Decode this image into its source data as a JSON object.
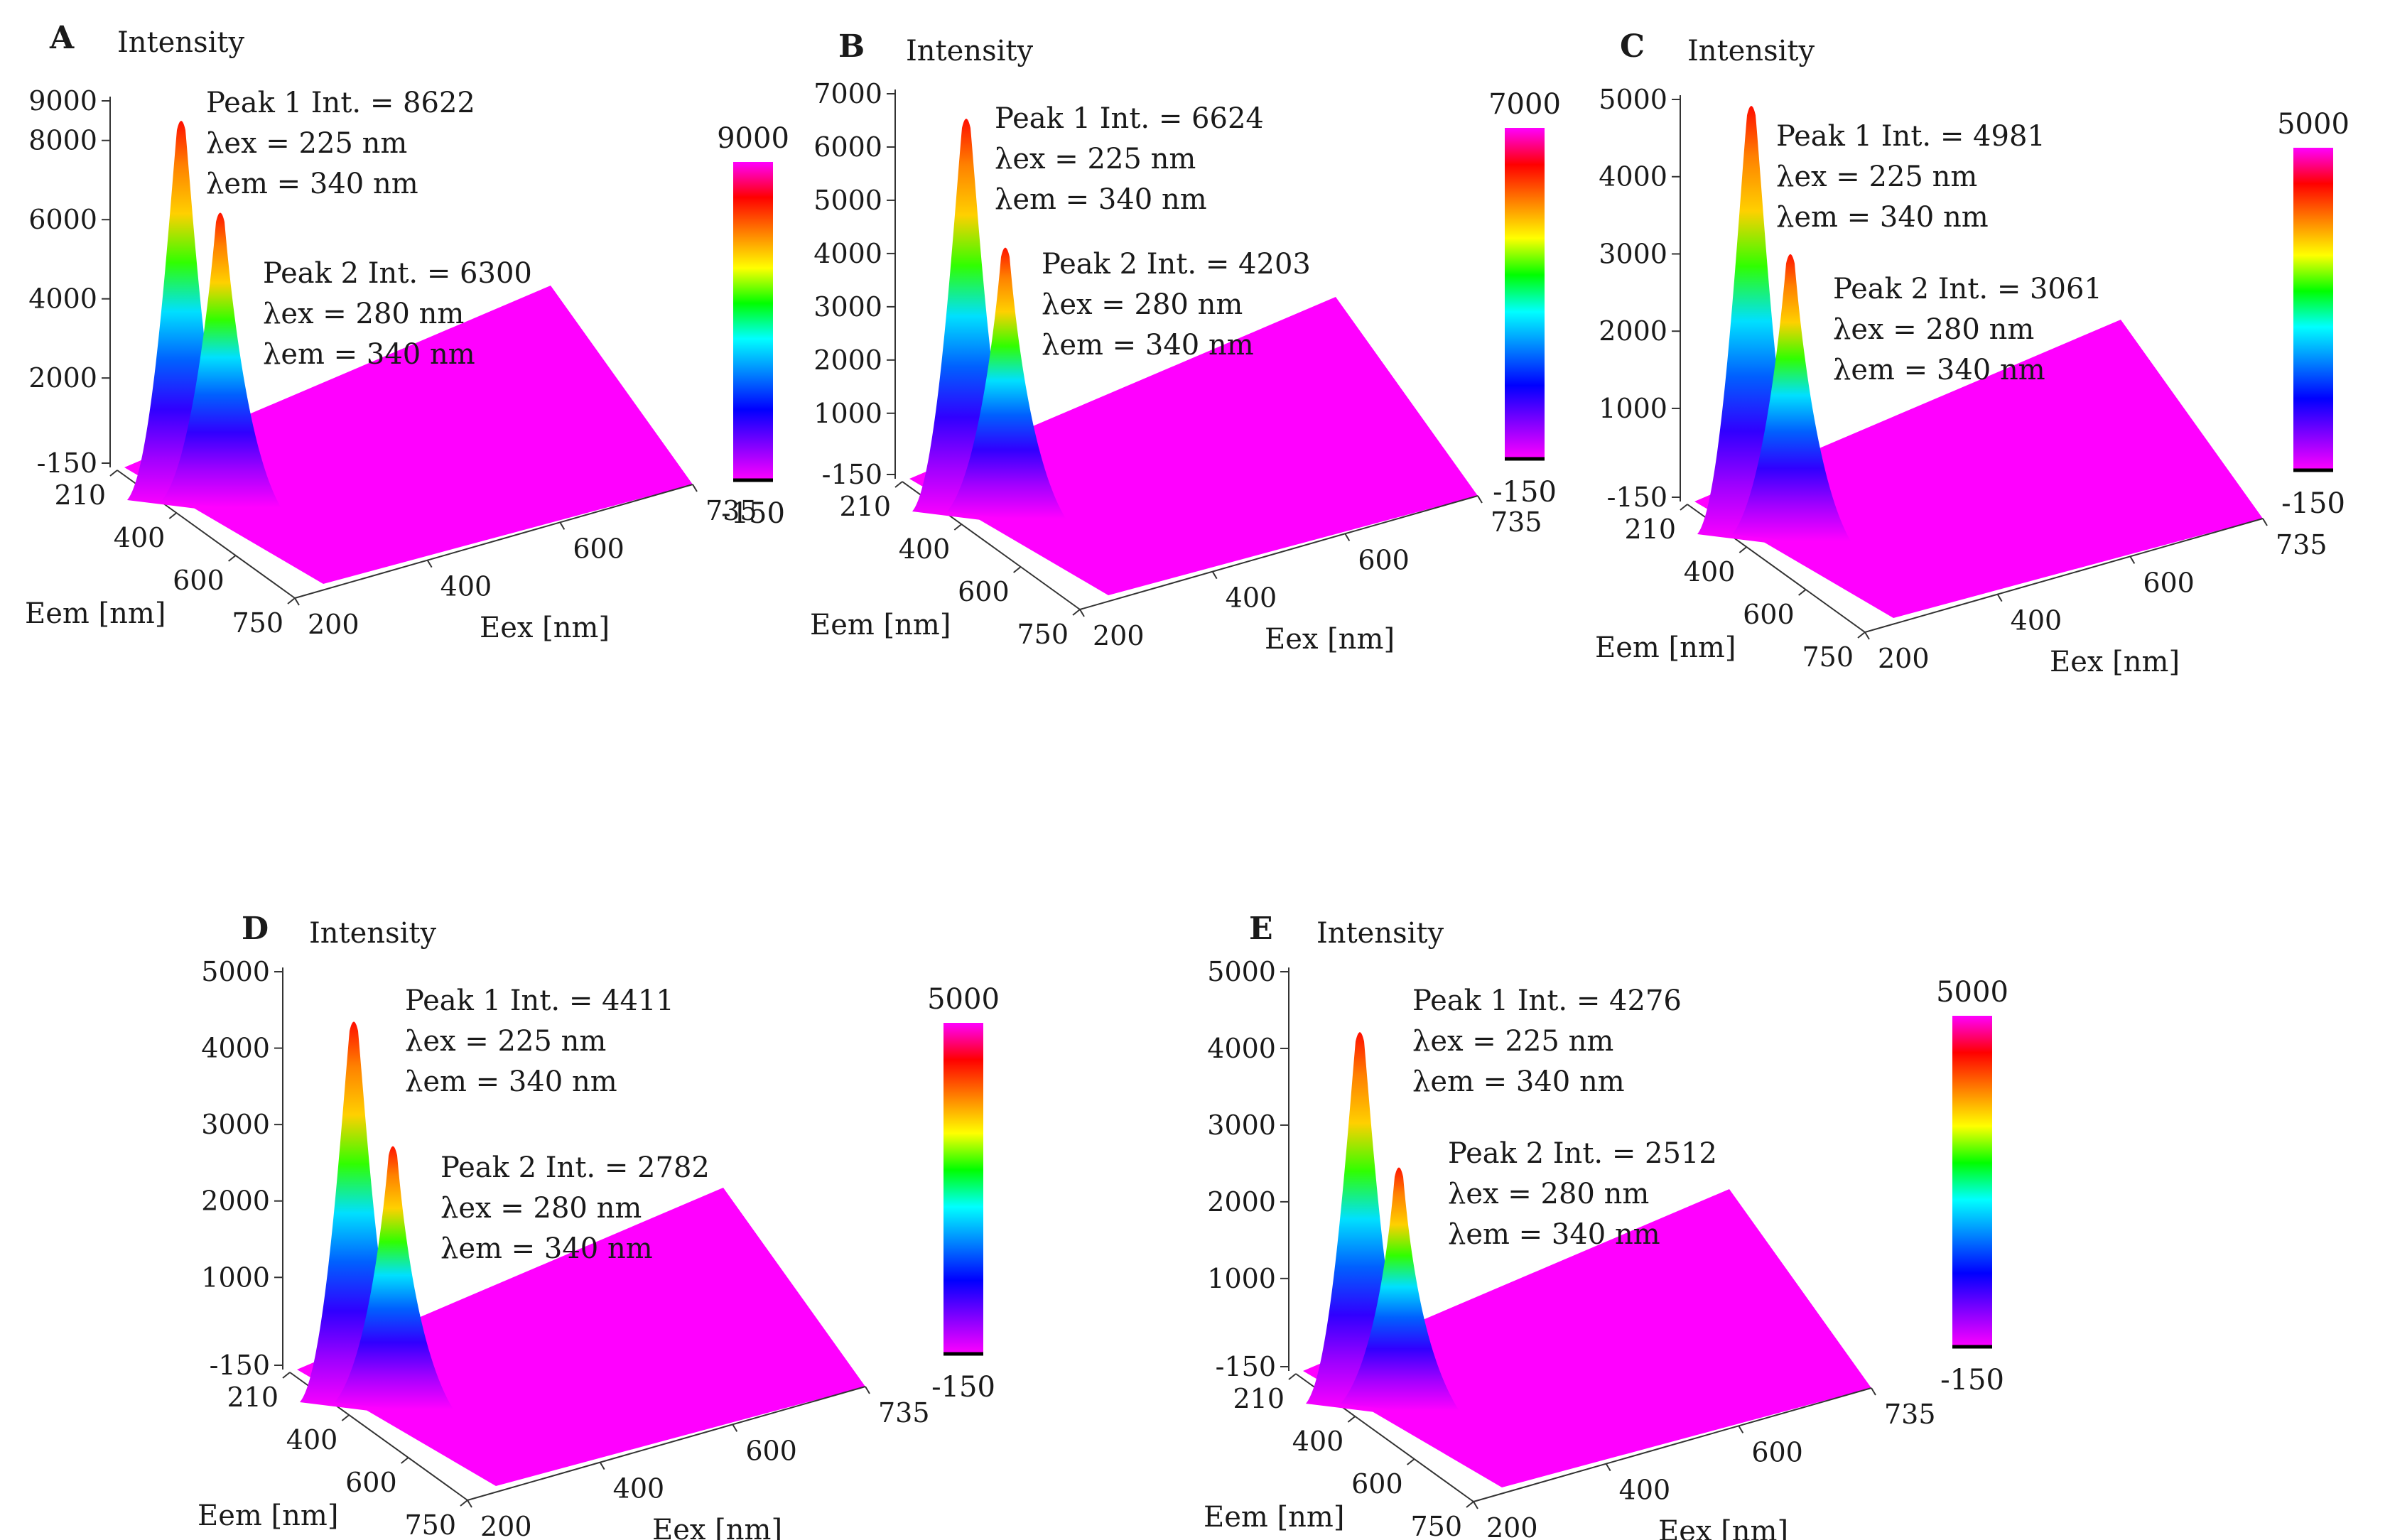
{
  "figure": {
    "colorbar_colors": [
      "#ff00ff",
      "#ff0000",
      "#ff8000",
      "#ffff00",
      "#00ff00",
      "#00ffff",
      "#0080ff",
      "#0000ff",
      "#8000ff",
      "#ff00ff"
    ],
    "floor_color": "#ff00ff"
  },
  "chart_data": [
    {
      "panel": "A",
      "type": "surface3d",
      "title": "Intensity",
      "xlabel": "Eex [nm]",
      "ylabel": "Eem [nm]",
      "zlabel": "Intensity",
      "z_ticks": [
        "9000",
        "8000",
        "6000",
        "4000",
        "2000",
        "-150"
      ],
      "z_tick_values": [
        9000,
        8000,
        6000,
        4000,
        2000,
        -150
      ],
      "zlim": [
        -150,
        9000
      ],
      "em_ticks": [
        "210",
        "400",
        "600",
        "750"
      ],
      "ex_ticks": [
        "200",
        "400",
        "600",
        "735"
      ],
      "colorbar": {
        "max": "9000",
        "min": "-150"
      },
      "peaks": [
        {
          "name": "Peak 1",
          "intensity": 8622,
          "label": "Peak 1 Int. = 8622",
          "ex_label": "λex = 225 nm",
          "em_label": "λem  = 340 nm",
          "ex": 225,
          "em": 340
        },
        {
          "name": "Peak 2",
          "intensity": 6300,
          "label": "Peak 2 Int. = 6300",
          "ex_label": "λex = 280 nm",
          "em_label": "λem  = 340 nm",
          "ex": 280,
          "em": 340
        }
      ]
    },
    {
      "panel": "B",
      "type": "surface3d",
      "title": "Intensity",
      "xlabel": "Eex [nm]",
      "ylabel": "Eem [nm]",
      "zlabel": "Intensity",
      "z_ticks": [
        "7000",
        "6000",
        "5000",
        "4000",
        "3000",
        "2000",
        "1000",
        "-150"
      ],
      "z_tick_values": [
        7000,
        6000,
        5000,
        4000,
        3000,
        2000,
        1000,
        -150
      ],
      "zlim": [
        -150,
        7000
      ],
      "em_ticks": [
        "210",
        "400",
        "600",
        "750"
      ],
      "ex_ticks": [
        "200",
        "400",
        "600",
        "735"
      ],
      "colorbar": {
        "max": "7000",
        "min": "-150"
      },
      "peaks": [
        {
          "name": "Peak 1",
          "intensity": 6624,
          "label": "Peak 1 Int. = 6624",
          "ex_label": "λex = 225 nm",
          "em_label": "λem  = 340 nm",
          "ex": 225,
          "em": 340
        },
        {
          "name": "Peak 2",
          "intensity": 4203,
          "label": "Peak 2 Int. = 4203",
          "ex_label": "λex = 280 nm",
          "em_label": "λem  = 340 nm",
          "ex": 280,
          "em": 340
        }
      ]
    },
    {
      "panel": "C",
      "type": "surface3d",
      "title": "Intensity",
      "xlabel": "Eex [nm]",
      "ylabel": "Eem [nm]",
      "zlabel": "Intensity",
      "z_ticks": [
        "5000",
        "4000",
        "3000",
        "2000",
        "1000",
        "-150"
      ],
      "z_tick_values": [
        5000,
        4000,
        3000,
        2000,
        1000,
        -150
      ],
      "zlim": [
        -150,
        5000
      ],
      "em_ticks": [
        "210",
        "400",
        "600",
        "750"
      ],
      "ex_ticks": [
        "200",
        "400",
        "600",
        "735"
      ],
      "colorbar": {
        "max": "5000",
        "min": "-150"
      },
      "peaks": [
        {
          "name": "Peak 1",
          "intensity": 4981,
          "label": "Peak 1 Int. = 4981",
          "ex_label": "λex = 225 nm",
          "em_label": "λem  = 340 nm",
          "ex": 225,
          "em": 340
        },
        {
          "name": "Peak 2",
          "intensity": 3061,
          "label": "Peak 2 Int. = 3061",
          "ex_label": "λex = 280 nm",
          "em_label": "λem  = 340 nm",
          "ex": 280,
          "em": 340
        }
      ]
    },
    {
      "panel": "D",
      "type": "surface3d",
      "title": "Intensity",
      "xlabel": "Eex [nm]",
      "ylabel": "Eem [nm]",
      "zlabel": "Intensity",
      "z_ticks": [
        "5000",
        "4000",
        "3000",
        "2000",
        "1000",
        "-150"
      ],
      "z_tick_values": [
        5000,
        4000,
        3000,
        2000,
        1000,
        -150
      ],
      "zlim": [
        -150,
        5000
      ],
      "em_ticks": [
        "210",
        "400",
        "600",
        "750"
      ],
      "ex_ticks": [
        "200",
        "400",
        "600",
        "735"
      ],
      "colorbar": {
        "max": "5000",
        "min": "-150"
      },
      "peaks": [
        {
          "name": "Peak 1",
          "intensity": 4411,
          "label": "Peak 1 Int. = 4411",
          "ex_label": "λex = 225 nm",
          "em_label": "λem  = 340 nm",
          "ex": 225,
          "em": 340
        },
        {
          "name": "Peak 2",
          "intensity": 2782,
          "label": "Peak 2 Int. = 2782",
          "ex_label": "λex = 280 nm",
          "em_label": "λem  = 340 nm",
          "ex": 280,
          "em": 340
        }
      ]
    },
    {
      "panel": "E",
      "type": "surface3d",
      "title": "Intensity",
      "xlabel": "Eex [nm]",
      "ylabel": "Eem [nm]",
      "zlabel": "Intensity",
      "z_ticks": [
        "5000",
        "4000",
        "3000",
        "2000",
        "1000",
        "-150"
      ],
      "z_tick_values": [
        5000,
        4000,
        3000,
        2000,
        1000,
        -150
      ],
      "zlim": [
        -150,
        5000
      ],
      "em_ticks": [
        "210",
        "400",
        "600",
        "750"
      ],
      "ex_ticks": [
        "200",
        "400",
        "600",
        "735"
      ],
      "colorbar": {
        "max": "5000",
        "min": "-150"
      },
      "peaks": [
        {
          "name": "Peak 1",
          "intensity": 4276,
          "label": "Peak 1 Int. = 4276",
          "ex_label": "λex = 225 nm",
          "em_label": "λem  = 340 nm",
          "ex": 225,
          "em": 340
        },
        {
          "name": "Peak 2",
          "intensity": 2512,
          "label": "Peak 2 Int. = 2512",
          "ex_label": "λex = 280 nm",
          "em_label": "λem  = 340 nm",
          "ex": 280,
          "em": 340
        }
      ]
    }
  ]
}
